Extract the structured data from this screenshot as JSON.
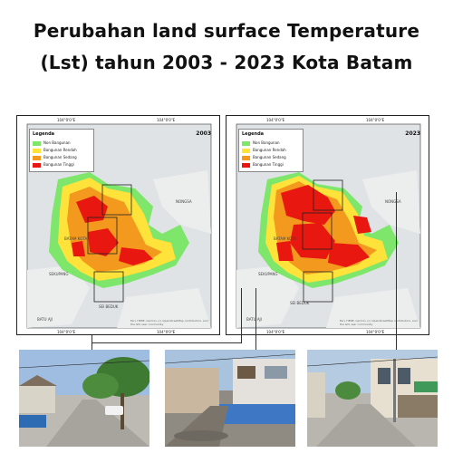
{
  "title": {
    "line1": "Perubahan land surface Temperature",
    "line2": "(Lst) tahun 2003 - 2023 Kota Batam"
  },
  "maps": [
    {
      "year": "2003",
      "legend": {
        "title": "Legenda",
        "items": [
          {
            "label": "Non Bangunan",
            "color": "#7ee66b"
          },
          {
            "label": "Bangunan Rendah",
            "color": "#ffe23a"
          },
          {
            "label": "Bangunan Sedang",
            "color": "#f39a1e"
          },
          {
            "label": "Bangunan Tinggi",
            "color": "#e8170f"
          }
        ]
      },
      "ticks": {
        "top_left": "104°0'0\"E",
        "top_right": "104°0'0\"E",
        "bottom_left": "104°0'0\"E",
        "bottom_right": "104°0'0\"E",
        "side_top": "1°10'0\"N",
        "side_bottom": "1°0'0\"N"
      },
      "places": [
        "NONGSA",
        "SEKUPANG",
        "SEI BEDUK",
        "BATU AJI",
        "BATAM KOTA"
      ],
      "credit": "Esri, HERE, Garmin, (c) OpenStreetMap contributors, and the GIS user community"
    },
    {
      "year": "2023",
      "legend": {
        "title": "Legenda",
        "items": [
          {
            "label": "Non Bangunan",
            "color": "#7ee66b"
          },
          {
            "label": "Bangunan Rendah",
            "color": "#ffe23a"
          },
          {
            "label": "Bangunan Sedang",
            "color": "#f39a1e"
          },
          {
            "label": "Bangunan Tinggi",
            "color": "#e8170f"
          }
        ]
      },
      "ticks": {
        "top_left": "104°0'0\"E",
        "top_right": "104°0'0\"E",
        "bottom_left": "104°0'0\"E",
        "bottom_right": "104°0'0\"E",
        "side_top": "1°10'0\"N",
        "side_bottom": "1°0'0\"N"
      },
      "places": [
        "NONGSA",
        "SEKUPANG",
        "SEI BEDUK",
        "BATU AJI",
        "BATAM KOTA"
      ],
      "credit": "Esri, HERE, Garmin, (c) OpenStreetMap contributors, and the GIS user community"
    }
  ],
  "colors": {
    "sea": "#dfe3e6",
    "land_bg": "#eceeee",
    "non_bangunan": "#7ee66b",
    "rendah": "#ffe23a",
    "sedang": "#f39a1e",
    "tinggi": "#e8170f"
  },
  "photos": [
    {
      "subject": "residential street with tree and parked white car"
    },
    {
      "subject": "housing row with blue fence on wet road"
    },
    {
      "subject": "shop houses along intersection with signs"
    }
  ]
}
